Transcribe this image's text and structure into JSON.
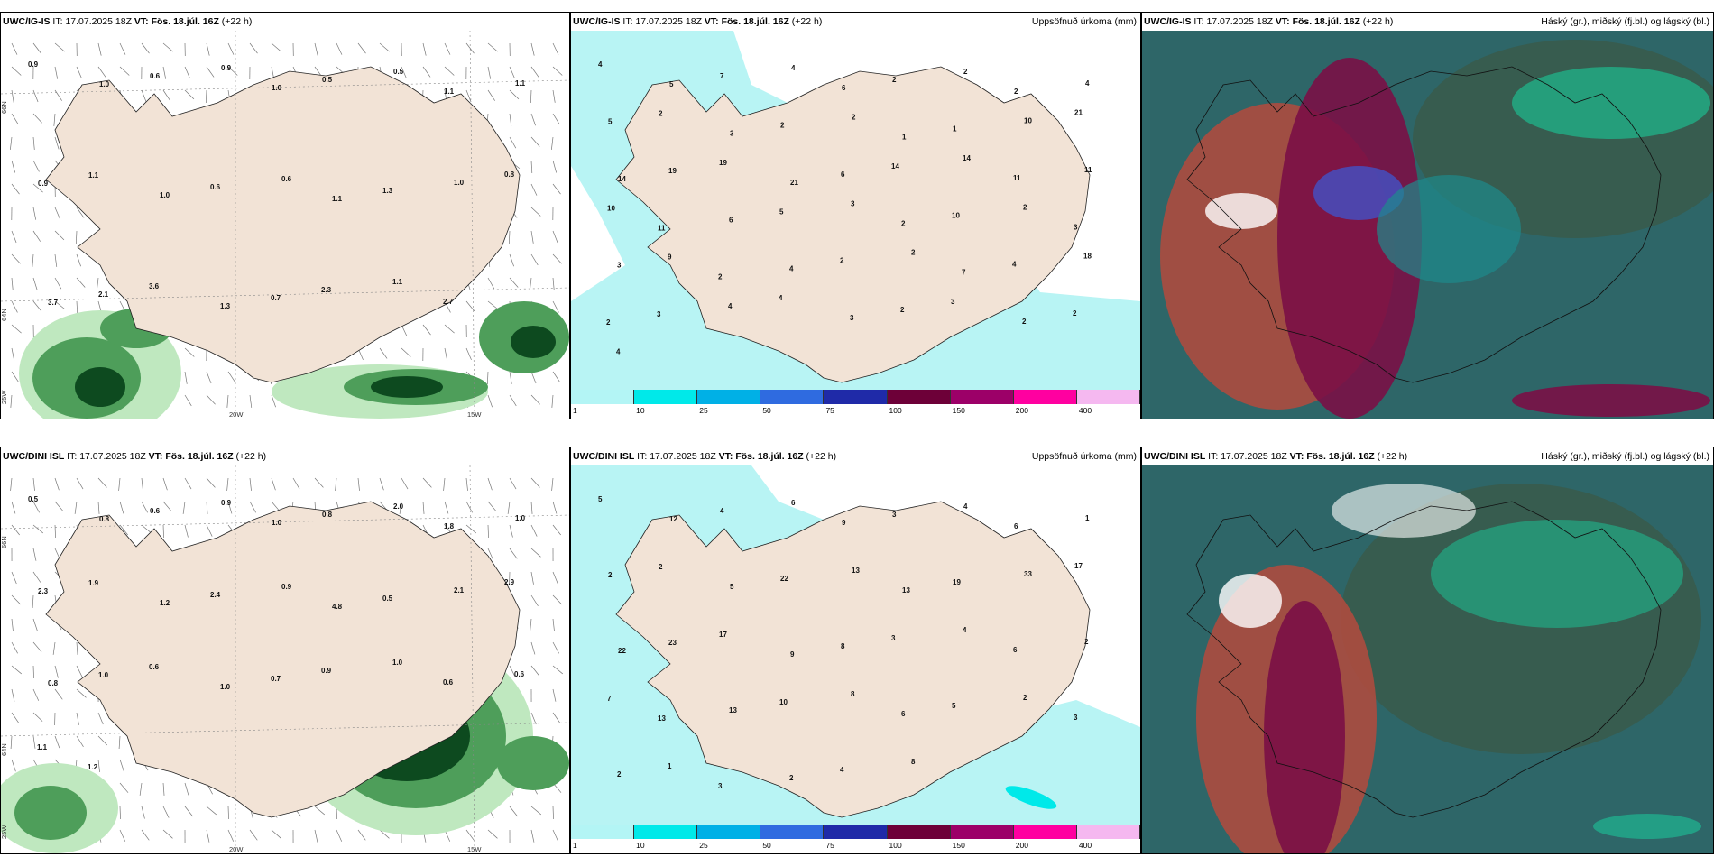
{
  "panels": [
    {
      "id": "p1",
      "model": "UWC/IG-IS",
      "it_label": "IT:",
      "it": "17.07.2025 18Z",
      "vt_label": "VT:",
      "vt": "Fös. 18.júl. 16Z",
      "lead": "(+22 h)",
      "right": ""
    },
    {
      "id": "p2",
      "model": "UWC/IG-IS",
      "it_label": "IT:",
      "it": "17.07.2025 18Z",
      "vt_label": "VT:",
      "vt": "Fös. 18.júl. 16Z",
      "lead": "(+22 h)",
      "right": "Uppsöfnuð úrkoma (mm)"
    },
    {
      "id": "p3",
      "model": "UWC/IG-IS",
      "it_label": "IT:",
      "it": "17.07.2025 18Z",
      "vt_label": "VT:",
      "vt": "Fös. 18.júl. 16Z",
      "lead": "(+22 h)",
      "right": "Háský (gr.), miðský (fj.bl.) og lágský (bl.)"
    },
    {
      "id": "p4",
      "model": "UWC/DINI ISL",
      "it_label": "IT:",
      "it": "17.07.2025 18Z",
      "vt_label": "VT:",
      "vt": "Fös. 18.júl. 16Z",
      "lead": "(+22 h)",
      "right": ""
    },
    {
      "id": "p5",
      "model": "UWC/DINI ISL",
      "it_label": "IT:",
      "it": "17.07.2025 18Z",
      "vt_label": "VT:",
      "vt": "Fös. 18.júl. 16Z",
      "lead": "(+22 h)",
      "right": "Uppsöfnuð úrkoma (mm)"
    },
    {
      "id": "p6",
      "model": "UWC/DINI ISL",
      "it_label": "IT:",
      "it": "17.07.2025 18Z",
      "vt_label": "VT:",
      "vt": "Fös. 18.júl. 16Z",
      "lead": "(+22 h)",
      "right": "Háský (gr.), miðský (fj.bl.) og lágský (bl.)"
    }
  ],
  "axis_labels": {
    "lat66": "66N",
    "lat64": "64N",
    "lat25w": "25W",
    "lon20": "20W",
    "lon15": "15W"
  },
  "colorbar": {
    "labels": [
      "1",
      "10",
      "25",
      "50",
      "75",
      "100",
      "150",
      "200",
      "400"
    ],
    "colors": [
      "#b3f5f5",
      "#00e9e9",
      "#00b0e6",
      "#2f6be0",
      "#1f2aa8",
      "#6d0038",
      "#9c0068",
      "#ff00a0",
      "#f5b8f0"
    ]
  },
  "colors": {
    "land": "#f2e3d6",
    "sea_precip": "#b8f4f4",
    "green_light": "#bfe8bf",
    "green_mid": "#4e9e5a",
    "green_dark": "#0d4a1f",
    "cloud_bg": "#2e6668",
    "cloud_dark": "#375c4f",
    "cloud_mid": "#1e8a8c",
    "cloud_teal": "#17d5a1",
    "cloud_maroon": "#7a1046",
    "cloud_red": "#b44a3d",
    "cloud_blue": "#3a5ad8"
  },
  "labels": {
    "p1": [
      "0.9",
      "1.0",
      "0.6",
      "0.9",
      "1.0",
      "0.5",
      "0.5",
      "1.1",
      "1.1",
      "0.9",
      "1.1",
      "1.0",
      "0.6",
      "0.6",
      "1.1",
      "1.3",
      "1.0",
      "0.8",
      "3.7",
      "2.1",
      "3.6",
      "1.3",
      "0.7",
      "2.3",
      "1.1",
      "2.7"
    ],
    "p2": [
      "4",
      "5",
      "7",
      "4",
      "6",
      "2",
      "2",
      "2",
      "4",
      "5",
      "2",
      "3",
      "2",
      "2",
      "1",
      "1",
      "10",
      "21",
      "14",
      "19",
      "19",
      "21",
      "6",
      "14",
      "14",
      "11",
      "11",
      "10",
      "11",
      "6",
      "5",
      "3",
      "2",
      "10",
      "2",
      "3",
      "3",
      "9",
      "2",
      "4",
      "2",
      "2",
      "7",
      "4",
      "18",
      "2",
      "3",
      "4",
      "4",
      "3",
      "2",
      "3",
      "2",
      "2",
      "4"
    ],
    "p4": [
      "0.5",
      "0.8",
      "0.6",
      "0.9",
      "1.0",
      "0.8",
      "2.0",
      "1.8",
      "1.0",
      "2.3",
      "1.9",
      "1.2",
      "2.4",
      "0.9",
      "4.8",
      "0.5",
      "2.1",
      "2.9",
      "0.8",
      "1.0",
      "0.6",
      "1.0",
      "0.7",
      "0.9",
      "1.0",
      "0.6",
      "0.6",
      "1.1",
      "1.2"
    ],
    "p5": [
      "5",
      "12",
      "4",
      "6",
      "9",
      "3",
      "4",
      "6",
      "1",
      "2",
      "2",
      "5",
      "22",
      "13",
      "13",
      "19",
      "33",
      "17",
      "22",
      "23",
      "17",
      "9",
      "8",
      "3",
      "4",
      "6",
      "2",
      "7",
      "13",
      "13",
      "10",
      "8",
      "6",
      "5",
      "2",
      "3",
      "2",
      "1",
      "3",
      "2",
      "4",
      "8"
    ]
  }
}
